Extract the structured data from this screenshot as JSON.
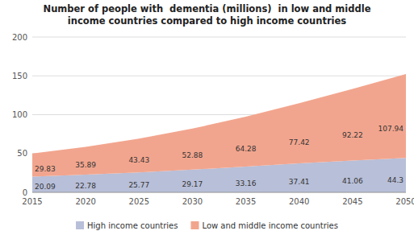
{
  "chart_data": {
    "type": "area",
    "stacked": true,
    "title": "Number of people with  dementia (millions)  in low and middle\nincome countries compared to high income countries",
    "x": [
      2015,
      2020,
      2025,
      2030,
      2035,
      2040,
      2045,
      2050
    ],
    "series": [
      {
        "name": "High income countries",
        "color": "#b8bfd8",
        "values": [
          20.09,
          22.78,
          25.77,
          29.17,
          33.16,
          37.41,
          41.06,
          44.3
        ]
      },
      {
        "name": "Low and middle income countries",
        "color": "#f2a58e",
        "values": [
          29.83,
          35.89,
          43.43,
          52.88,
          64.28,
          77.42,
          92.22,
          107.94
        ]
      }
    ],
    "xlim": [
      2015,
      2050
    ],
    "xticks": [
      2015,
      2020,
      2025,
      2030,
      2035,
      2040,
      2045,
      2050
    ],
    "ylim": [
      0,
      200
    ],
    "yticks": [
      0,
      50,
      100,
      150,
      200
    ],
    "grid": true,
    "legend": "bottom",
    "data_labels": true
  }
}
